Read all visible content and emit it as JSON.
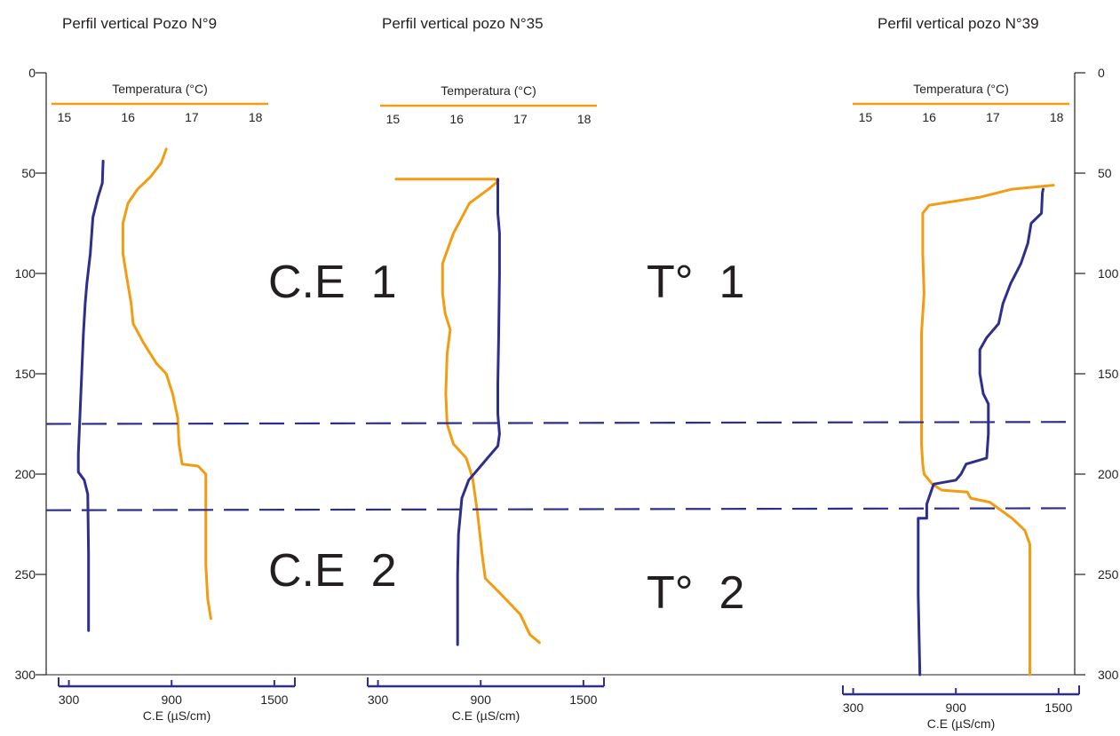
{
  "chart_data": {
    "type": "line",
    "depth_axis": {
      "ticks": [
        "0",
        "50",
        "100",
        "150",
        "200",
        "250",
        "300"
      ],
      "tick_values": [
        0,
        50,
        100,
        150,
        200,
        250,
        300
      ],
      "range": [
        0,
        300
      ],
      "inverted": true
    },
    "panels": [
      {
        "title": "Perfil vertical Pozo N°9",
        "temp_axis": {
          "label": "Temperatura (°C)",
          "ticks": [
            "15",
            "16",
            "17",
            "18"
          ],
          "tick_values": [
            15,
            16,
            17,
            18
          ],
          "range": [
            14.8,
            18.2
          ]
        },
        "ce_axis": {
          "label": "C.E (µS/cm)",
          "ticks": [
            "300",
            "900",
            "1500"
          ],
          "tick_values": [
            300,
            900,
            1500
          ],
          "range": [
            240,
            1620
          ]
        },
        "series": [
          {
            "quantity": "temperature",
            "color": "#f39c12",
            "points": [
              [
                16.6,
                38
              ],
              [
                16.52,
                45
              ],
              [
                16.35,
                52
              ],
              [
                16.15,
                58
              ],
              [
                16.0,
                65
              ],
              [
                15.92,
                75
              ],
              [
                15.92,
                90
              ],
              [
                15.98,
                102
              ],
              [
                16.05,
                115
              ],
              [
                16.08,
                125
              ],
              [
                16.25,
                135
              ],
              [
                16.45,
                145
              ],
              [
                16.6,
                150
              ],
              [
                16.7,
                160
              ],
              [
                16.78,
                172
              ],
              [
                16.8,
                185
              ],
              [
                16.85,
                195
              ],
              [
                17.1,
                196
              ],
              [
                17.22,
                200
              ],
              [
                17.22,
                220
              ],
              [
                17.22,
                245
              ],
              [
                17.25,
                262
              ],
              [
                17.3,
                272
              ]
            ]
          },
          {
            "quantity": "conductivity",
            "color": "#2e2e8c",
            "points": [
              [
                500,
                44
              ],
              [
                495,
                55
              ],
              [
                470,
                62
              ],
              [
                440,
                72
              ],
              [
                425,
                90
              ],
              [
                405,
                105
              ],
              [
                395,
                115
              ],
              [
                385,
                130
              ],
              [
                375,
                150
              ],
              [
                365,
                170
              ],
              [
                355,
                190
              ],
              [
                355,
                199
              ],
              [
                390,
                203
              ],
              [
                410,
                210
              ],
              [
                415,
                240
              ],
              [
                415,
                278
              ]
            ]
          }
        ]
      },
      {
        "title": "Perfil vertical pozo N°35",
        "temp_axis": {
          "label": "Temperatura (°C)",
          "ticks": [
            "15",
            "16",
            "17",
            "18"
          ],
          "tick_values": [
            15,
            16,
            17,
            18
          ],
          "range": [
            14.8,
            18.2
          ]
        },
        "ce_axis": {
          "label": "C.E (µS/cm)",
          "ticks": [
            "300",
            "900",
            "1500"
          ],
          "tick_values": [
            300,
            900,
            1500
          ],
          "range": [
            240,
            1620
          ]
        },
        "series": [
          {
            "quantity": "temperature",
            "color": "#f39c12",
            "points": [
              [
                15.05,
                53
              ],
              [
                16.6,
                53
              ],
              [
                16.65,
                54
              ],
              [
                16.5,
                58
              ],
              [
                16.2,
                65
              ],
              [
                15.95,
                80
              ],
              [
                15.78,
                95
              ],
              [
                15.78,
                110
              ],
              [
                15.82,
                120
              ],
              [
                15.9,
                128
              ],
              [
                15.85,
                140
              ],
              [
                15.83,
                160
              ],
              [
                15.85,
                175
              ],
              [
                15.95,
                185
              ],
              [
                16.15,
                192
              ],
              [
                16.25,
                202
              ],
              [
                16.33,
                220
              ],
              [
                16.4,
                240
              ],
              [
                16.45,
                252
              ],
              [
                16.7,
                260
              ],
              [
                17.0,
                270
              ],
              [
                17.15,
                280
              ],
              [
                17.3,
                284
              ]
            ]
          },
          {
            "quantity": "conductivity",
            "color": "#2e2e8c",
            "points": [
              [
                1000,
                53
              ],
              [
                1000,
                70
              ],
              [
                1010,
                80
              ],
              [
                1010,
                100
              ],
              [
                1005,
                130
              ],
              [
                1000,
                155
              ],
              [
                1000,
                170
              ],
              [
                1010,
                180
              ],
              [
                1000,
                186
              ],
              [
                940,
                192
              ],
              [
                880,
                198
              ],
              [
                830,
                203
              ],
              [
                790,
                212
              ],
              [
                770,
                230
              ],
              [
                765,
                250
              ],
              [
                765,
                285
              ]
            ]
          }
        ]
      },
      {
        "title": "Perfil  vertical pozo N°39",
        "temp_axis": {
          "label": "Temperatura (°C)",
          "ticks": [
            "15",
            "16",
            "17",
            "18"
          ],
          "tick_values": [
            15,
            16,
            17,
            18
          ],
          "range": [
            14.8,
            18.2
          ]
        },
        "ce_axis": {
          "label": "C.E (µS/cm)",
          "ticks": [
            "300",
            "900",
            "1500"
          ],
          "tick_values": [
            300,
            900,
            1500
          ],
          "range": [
            240,
            1620
          ]
        },
        "series": [
          {
            "quantity": "temperature",
            "color": "#f39c12",
            "points": [
              [
                17.95,
                56
              ],
              [
                17.3,
                58
              ],
              [
                16.8,
                62
              ],
              [
                16.4,
                64
              ],
              [
                16.0,
                66
              ],
              [
                15.9,
                70
              ],
              [
                15.9,
                90
              ],
              [
                15.92,
                110
              ],
              [
                15.88,
                130
              ],
              [
                15.88,
                150
              ],
              [
                15.88,
                170
              ],
              [
                15.88,
                185
              ],
              [
                15.9,
                195
              ],
              [
                15.92,
                200
              ],
              [
                16.05,
                205
              ],
              [
                16.2,
                208
              ],
              [
                16.6,
                209
              ],
              [
                16.65,
                212
              ],
              [
                16.95,
                214
              ],
              [
                17.3,
                222
              ],
              [
                17.5,
                228
              ],
              [
                17.58,
                235
              ],
              [
                17.58,
                260
              ],
              [
                17.58,
                300
              ]
            ]
          },
          {
            "quantity": "conductivity",
            "color": "#2e2e8c",
            "points": [
              [
                1410,
                58
              ],
              [
                1405,
                60
              ],
              [
                1400,
                70
              ],
              [
                1340,
                75
              ],
              [
                1320,
                85
              ],
              [
                1280,
                95
              ],
              [
                1220,
                105
              ],
              [
                1175,
                115
              ],
              [
                1150,
                125
              ],
              [
                1080,
                132
              ],
              [
                1040,
                138
              ],
              [
                1040,
                150
              ],
              [
                1060,
                160
              ],
              [
                1090,
                165
              ],
              [
                1090,
                180
              ],
              [
                1080,
                192
              ],
              [
                960,
                195
              ],
              [
                930,
                200
              ],
              [
                900,
                203
              ],
              [
                770,
                205
              ],
              [
                730,
                215
              ],
              [
                730,
                222
              ],
              [
                680,
                222
              ],
              [
                680,
                240
              ],
              [
                680,
                260
              ],
              [
                690,
                300
              ]
            ]
          }
        ]
      }
    ],
    "boundaries": [
      {
        "type": "dashed",
        "depth_left": 175,
        "depth_right": 174
      },
      {
        "type": "dashed",
        "depth_left": 218,
        "depth_right": 217
      }
    ],
    "annotations": [
      {
        "text": "C.E  1",
        "near_depth": 100
      },
      {
        "text": "C.E  2",
        "near_depth": 250
      },
      {
        "text": "T°  1",
        "near_depth": 100
      },
      {
        "text": "T°  2",
        "near_depth": 255
      }
    ]
  }
}
